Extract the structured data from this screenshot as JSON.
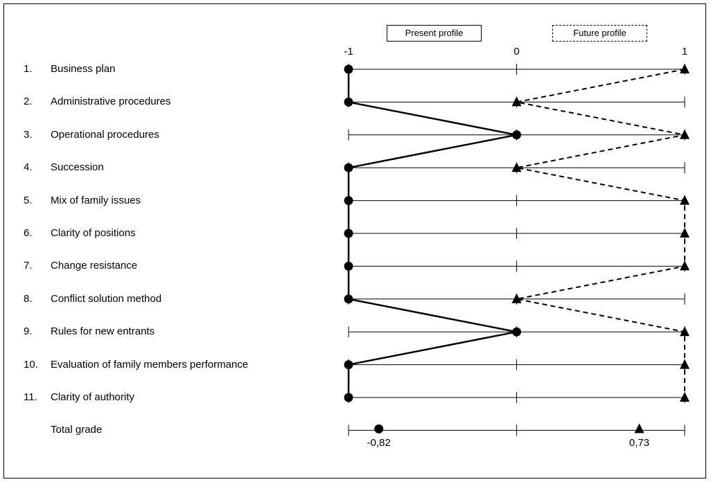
{
  "chart_data": {
    "type": "line",
    "legend": {
      "present": "Present profile",
      "future": "Future profile",
      "placement": "top"
    },
    "x_ticks": [
      {
        "value": -1,
        "label": "-1"
      },
      {
        "value": 0,
        "label": "0"
      },
      {
        "value": 1,
        "label": "1"
      }
    ],
    "xlim": [
      -1,
      1
    ],
    "criteria": [
      {
        "num": "1.",
        "label": "Business plan",
        "present": -1,
        "future": 1
      },
      {
        "num": "2.",
        "label": "Administrative procedures",
        "present": -1,
        "future": 0
      },
      {
        "num": "3.",
        "label": "Operational procedures",
        "present": 0,
        "future": 1
      },
      {
        "num": "4.",
        "label": "Succession",
        "present": -1,
        "future": 0
      },
      {
        "num": "5.",
        "label": "Mix of family issues",
        "present": -1,
        "future": 1
      },
      {
        "num": "6.",
        "label": "Clarity of positions",
        "present": -1,
        "future": 1
      },
      {
        "num": "7.",
        "label": "Change resistance",
        "present": -1,
        "future": 1
      },
      {
        "num": "8.",
        "label": "Conflict solution method",
        "present": -1,
        "future": 0
      },
      {
        "num": "9.",
        "label": "Rules for new entrants",
        "present": 0,
        "future": 1
      },
      {
        "num": "10.",
        "label": "Evaluation of family members performance",
        "present": -1,
        "future": 1
      },
      {
        "num": "11.",
        "label": "Clarity of authority",
        "present": -1,
        "future": 1
      }
    ],
    "total": {
      "label": "Total grade",
      "present": -0.82,
      "present_label": "-0,82",
      "future": 0.73,
      "future_label": "0,73"
    }
  }
}
